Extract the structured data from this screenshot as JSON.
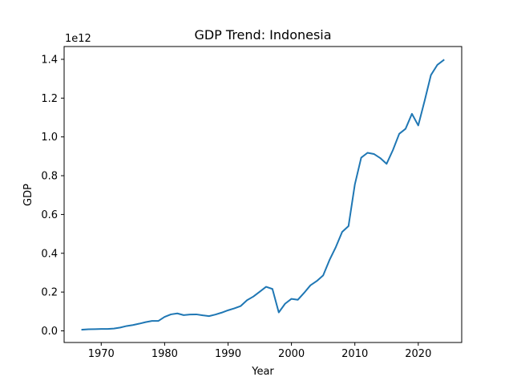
{
  "chart_data": {
    "type": "line",
    "title": "GDP Trend: Indonesia",
    "xlabel": "Year",
    "ylabel": "GDP",
    "y_offset_label": "1e12",
    "xlim": [
      1964.15,
      2026.85
    ],
    "ylim": [
      -0.06,
      1.466
    ],
    "y_scale_factor": 1000000000000.0,
    "x_ticks": [
      1970,
      1980,
      1990,
      2000,
      2010,
      2020
    ],
    "y_ticks": [
      0.0,
      0.2,
      0.4,
      0.6,
      0.8,
      1.0,
      1.2,
      1.4
    ],
    "y_tick_labels": [
      "0.0",
      "0.2",
      "0.4",
      "0.6",
      "0.8",
      "1.0",
      "1.2",
      "1.4"
    ],
    "grid": false,
    "series": [
      {
        "color": "#1f77b4",
        "x": [
          1967,
          1968,
          1969,
          1970,
          1971,
          1972,
          1973,
          1974,
          1975,
          1976,
          1977,
          1978,
          1979,
          1980,
          1981,
          1982,
          1983,
          1984,
          1985,
          1986,
          1987,
          1988,
          1989,
          1990,
          1991,
          1992,
          1993,
          1994,
          1995,
          1996,
          1997,
          1998,
          1999,
          2000,
          2001,
          2002,
          2003,
          2004,
          2005,
          2006,
          2007,
          2008,
          2009,
          2010,
          2011,
          2012,
          2013,
          2014,
          2015,
          2016,
          2017,
          2018,
          2019,
          2020,
          2021,
          2022,
          2023,
          2024
        ],
        "y": [
          0.006,
          0.008,
          0.009,
          0.01,
          0.01,
          0.012,
          0.017,
          0.025,
          0.03,
          0.037,
          0.045,
          0.051,
          0.051,
          0.072,
          0.085,
          0.09,
          0.081,
          0.084,
          0.085,
          0.08,
          0.076,
          0.084,
          0.094,
          0.106,
          0.116,
          0.128,
          0.158,
          0.177,
          0.202,
          0.227,
          0.216,
          0.095,
          0.14,
          0.165,
          0.16,
          0.196,
          0.235,
          0.257,
          0.286,
          0.365,
          0.432,
          0.51,
          0.54,
          0.755,
          0.893,
          0.918,
          0.912,
          0.891,
          0.861,
          0.932,
          1.016,
          1.042,
          1.119,
          1.059,
          1.186,
          1.319,
          1.371,
          1.396
        ]
      }
    ]
  }
}
